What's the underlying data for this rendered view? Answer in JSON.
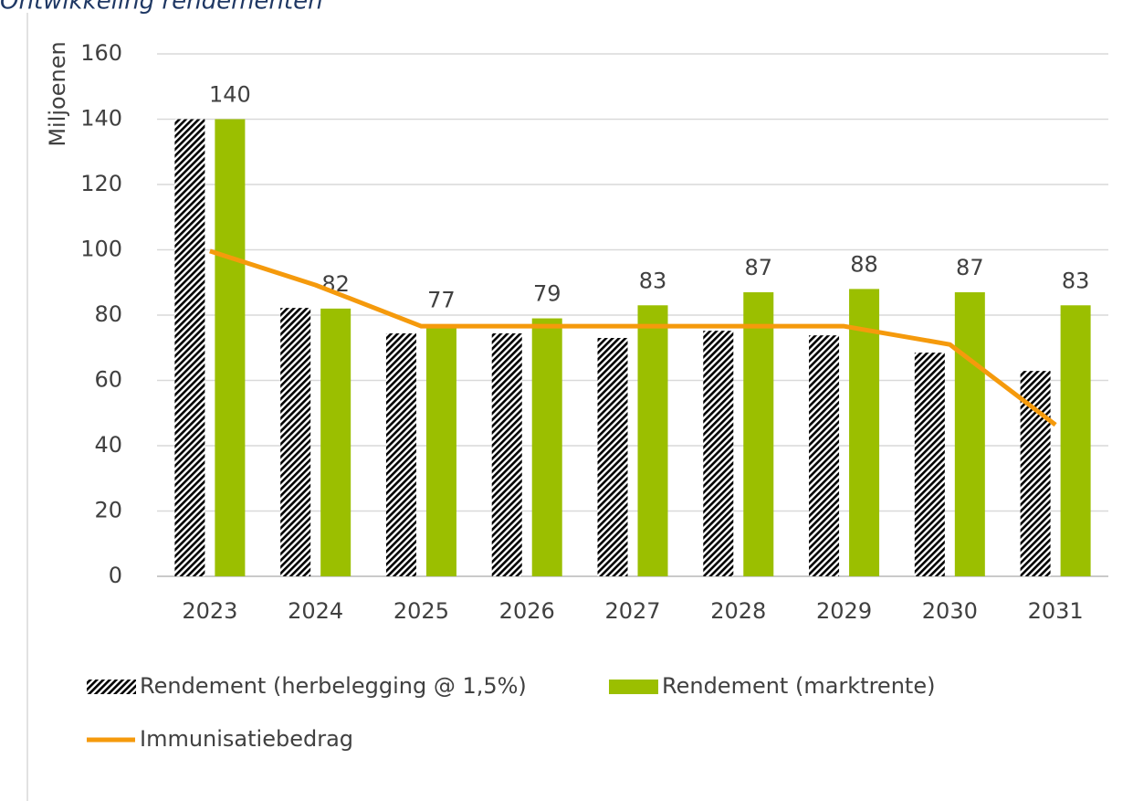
{
  "chart_data": {
    "type": "bar",
    "title": "Ontwikkeling rendementen",
    "y_label": "Miljoenen",
    "categories": [
      "2023",
      "2024",
      "2025",
      "2026",
      "2027",
      "2028",
      "2029",
      "2030",
      "2031"
    ],
    "series": [
      {
        "name": "Rendement (herbelegging @ 1,5%)",
        "type": "bar",
        "color": "#000000",
        "pattern": "diagonal-stripes",
        "values": [
          140,
          82.2,
          74.4,
          74.4,
          73,
          75.2,
          73.8,
          68.5,
          62.9
        ]
      },
      {
        "name": "Rendement (marktrente)",
        "type": "bar",
        "color": "#9bbf00",
        "data_labels": true,
        "values": [
          140,
          82,
          77,
          79,
          83,
          87,
          88,
          87,
          83
        ]
      },
      {
        "name": "Immunisatiebedrag",
        "type": "line",
        "color": "#f59a0c",
        "values": [
          99.6,
          89.2,
          76.6,
          76.6,
          76.6,
          76.6,
          76.6,
          71,
          46.4
        ]
      }
    ],
    "ylim": [
      0,
      160
    ],
    "yticks": [
      0,
      20,
      40,
      60,
      80,
      100,
      120,
      140,
      160
    ],
    "grid": true,
    "legend": "bottom"
  }
}
